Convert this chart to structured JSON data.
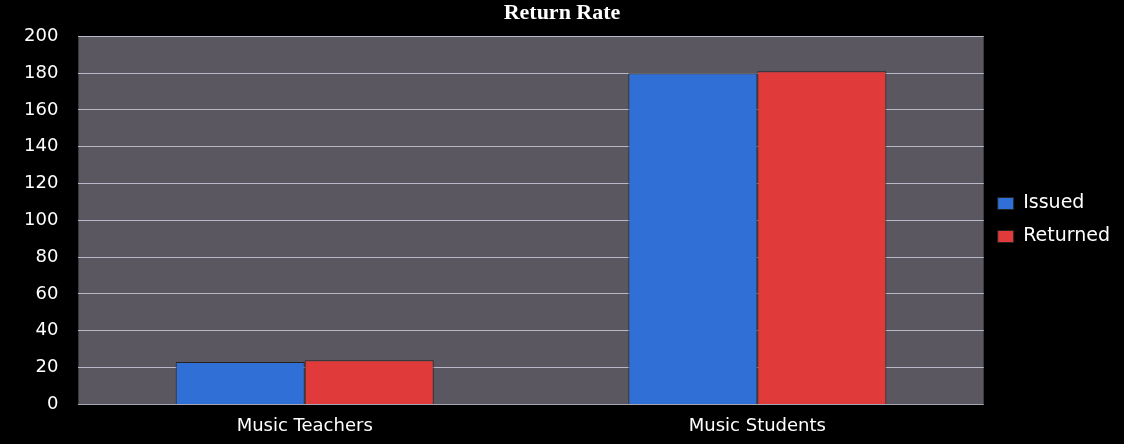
{
  "chart_data": {
    "type": "bar",
    "title": "Return Rate",
    "categories": [
      "Music Teachers",
      "Music Students"
    ],
    "series": [
      {
        "name": "Issued",
        "color": "#2f6fd6",
        "values": [
          23,
          180
        ]
      },
      {
        "name": "Returned",
        "color": "#e03a3a",
        "values": [
          24,
          181
        ]
      }
    ],
    "ylim": [
      0,
      200
    ],
    "yticks": [
      0,
      20,
      40,
      60,
      80,
      100,
      120,
      140,
      160,
      180,
      200
    ],
    "grid": "y",
    "legend": "right"
  }
}
